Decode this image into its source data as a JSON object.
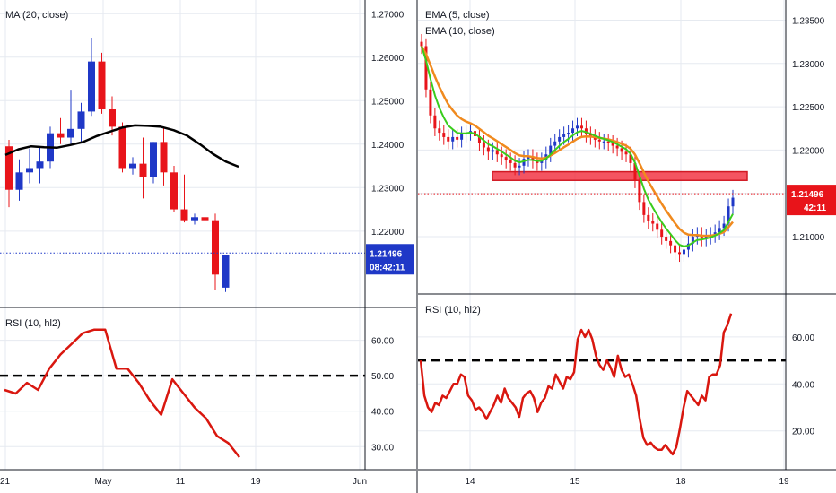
{
  "colors": {
    "bear": "#e8141a",
    "bull": "#1f38c7",
    "ma": "#000000",
    "ema5": "#39cc1c",
    "ema10": "#f08a1e",
    "rsi": "#d9170f",
    "last_price_left": "#1f38c7",
    "last_price_right": "#e8141a",
    "zone": "#f23645",
    "grid": "#e6eaf0"
  },
  "chart_data": [
    {
      "type": "candlestick",
      "panel": "left-price",
      "indicator_label": "MA (20, close)",
      "y_ticks": [
        "1.27000",
        "1.26000",
        "1.25000",
        "1.24000",
        "1.23000",
        "1.22000"
      ],
      "ylim": [
        1.2045,
        1.2715
      ],
      "x_ticks": [
        "21",
        "May",
        "11",
        "19",
        "Jun"
      ],
      "last_price": "1.21496",
      "countdown": "08:42:11",
      "candles": [
        {
          "o": 1.2395,
          "h": 1.241,
          "l": 1.2255,
          "c": 1.2295
        },
        {
          "o": 1.2295,
          "h": 1.2365,
          "l": 1.227,
          "c": 1.2335
        },
        {
          "o": 1.2335,
          "h": 1.239,
          "l": 1.231,
          "c": 1.2345
        },
        {
          "o": 1.2345,
          "h": 1.2395,
          "l": 1.231,
          "c": 1.236
        },
        {
          "o": 1.236,
          "h": 1.244,
          "l": 1.2345,
          "c": 1.2425
        },
        {
          "o": 1.2425,
          "h": 1.246,
          "l": 1.24,
          "c": 1.2415
        },
        {
          "o": 1.2415,
          "h": 1.2525,
          "l": 1.24,
          "c": 1.2435
        },
        {
          "o": 1.2435,
          "h": 1.2495,
          "l": 1.2405,
          "c": 1.2475
        },
        {
          "o": 1.2475,
          "h": 1.2645,
          "l": 1.2465,
          "c": 1.259
        },
        {
          "o": 1.259,
          "h": 1.261,
          "l": 1.247,
          "c": 1.248
        },
        {
          "o": 1.248,
          "h": 1.251,
          "l": 1.242,
          "c": 1.244
        },
        {
          "o": 1.244,
          "h": 1.245,
          "l": 1.2335,
          "c": 1.2345
        },
        {
          "o": 1.2345,
          "h": 1.237,
          "l": 1.233,
          "c": 1.2355
        },
        {
          "o": 1.2355,
          "h": 1.2415,
          "l": 1.2275,
          "c": 1.2325
        },
        {
          "o": 1.2325,
          "h": 1.2405,
          "l": 1.231,
          "c": 1.2405
        },
        {
          "o": 1.2405,
          "h": 1.244,
          "l": 1.2305,
          "c": 1.2335
        },
        {
          "o": 1.2335,
          "h": 1.235,
          "l": 1.2245,
          "c": 1.225
        },
        {
          "o": 1.225,
          "h": 1.233,
          "l": 1.222,
          "c": 1.2225
        },
        {
          "o": 1.2225,
          "h": 1.224,
          "l": 1.2215,
          "c": 1.2232
        },
        {
          "o": 1.2232,
          "h": 1.2242,
          "l": 1.2218,
          "c": 1.2225
        },
        {
          "o": 1.2225,
          "h": 1.224,
          "l": 1.2065,
          "c": 1.21
        },
        {
          "o": 1.207,
          "h": 1.2145,
          "l": 1.206,
          "c": 1.2145
        }
      ],
      "ma20": [
        1.2375,
        1.2388,
        1.2395,
        1.2393,
        1.2392,
        1.2398,
        1.2405,
        1.2418,
        1.2428,
        1.2438,
        1.2443,
        1.2442,
        1.244,
        1.2432,
        1.242,
        1.24,
        1.2378,
        1.236,
        1.2348
      ]
    },
    {
      "type": "line",
      "panel": "left-rsi",
      "indicator_label": "RSI (10, hl2)",
      "y_ticks": [
        "60.00",
        "50.00",
        "40.00",
        "30.00"
      ],
      "ylim": [
        24.5,
        67.5
      ],
      "level": 50,
      "values": [
        46,
        45,
        48,
        46,
        52,
        56,
        59,
        62,
        63,
        63,
        52,
        52,
        48,
        43,
        39,
        49,
        45,
        41,
        38,
        33,
        31,
        27
      ]
    },
    {
      "type": "candlestick",
      "panel": "right-price",
      "indicator_labels": [
        "EMA (5, close)",
        "EMA (10, close)"
      ],
      "y_ticks": [
        "1.23500",
        "1.23000",
        "1.22500",
        "1.22000",
        "1.21500",
        "1.21000"
      ],
      "ylim": [
        1.204,
        1.2365
      ],
      "x_ticks": [
        "14",
        "15",
        "18",
        "19"
      ],
      "last_price": "1.21496",
      "countdown": "42:11",
      "zone": [
        1.2165,
        1.2175
      ],
      "closes": [
        1.232,
        1.227,
        1.224,
        1.2225,
        1.222,
        1.2215,
        1.221,
        1.2215,
        1.2212,
        1.2218,
        1.222,
        1.2222,
        1.2216,
        1.2208,
        1.2203,
        1.2198,
        1.22,
        1.2195,
        1.2192,
        1.2188,
        1.2185,
        1.218,
        1.2182,
        1.219,
        1.2192,
        1.2188,
        1.2185,
        1.2188,
        1.2195,
        1.2205,
        1.221,
        1.2215,
        1.2218,
        1.222,
        1.2225,
        1.2228,
        1.2225,
        1.2218,
        1.2215,
        1.2212,
        1.221,
        1.221,
        1.2208,
        1.2205,
        1.2202,
        1.2198,
        1.2195,
        1.2185,
        1.2165,
        1.214,
        1.2125,
        1.2118,
        1.2115,
        1.2108,
        1.21,
        1.2095,
        1.209,
        1.2082,
        1.208,
        1.2085,
        1.2092,
        1.21,
        1.2102,
        1.2098,
        1.21,
        1.2102,
        1.2105,
        1.211,
        1.2115,
        1.2135,
        1.2145
      ]
    },
    {
      "type": "line",
      "panel": "right-rsi",
      "indicator_label": "RSI (10, hl2)",
      "y_ticks": [
        "60.00",
        "40.00",
        "20.00"
      ],
      "ylim": [
        5,
        76
      ],
      "level": 50,
      "values": [
        50,
        35,
        30,
        28,
        32,
        31,
        35,
        34,
        37,
        40,
        40,
        44,
        43,
        35,
        33,
        29,
        30,
        28,
        25,
        28,
        31,
        35,
        32,
        38,
        34,
        32,
        30,
        26,
        34,
        36,
        37,
        34,
        28,
        32,
        34,
        39,
        38,
        44,
        41,
        38,
        43,
        42,
        45,
        59,
        63,
        60,
        63,
        59,
        52,
        48,
        46,
        50,
        47,
        43,
        52,
        46,
        43,
        44,
        40,
        35,
        25,
        17,
        14,
        15,
        13,
        12,
        12,
        14,
        12,
        10,
        13,
        21,
        30,
        37,
        35,
        33,
        31,
        35,
        33,
        43,
        44,
        44,
        48,
        62,
        65,
        70
      ]
    }
  ]
}
